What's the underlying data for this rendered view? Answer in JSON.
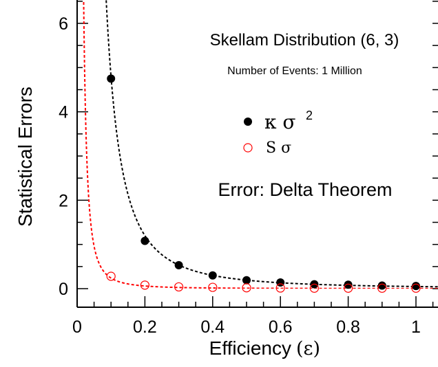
{
  "chart_data": {
    "type": "scatter",
    "xlabel": "Efficiency",
    "xlabel_symbol": "(ε)",
    "ylabel": "Statistical Errors",
    "xlim": [
      0,
      1.08
    ],
    "ylim": [
      -0.2,
      6.5
    ],
    "x_ticks": [
      {
        "value": 0,
        "label": "0"
      },
      {
        "value": 0.2,
        "label": "0.2"
      },
      {
        "value": 0.4,
        "label": "0.4"
      },
      {
        "value": 0.6,
        "label": "0.6"
      },
      {
        "value": 0.8,
        "label": "0.8"
      },
      {
        "value": 1.0,
        "label": "1"
      }
    ],
    "y_ticks": [
      {
        "value": 0,
        "label": "0"
      },
      {
        "value": 2,
        "label": "2"
      },
      {
        "value": 4,
        "label": "4"
      },
      {
        "value": 6,
        "label": "6"
      }
    ],
    "annotations": {
      "distribution": "Skellam Distribution (6, 3)",
      "events": "Number of Events: 1 Million",
      "method": "Error: Delta Theorem"
    },
    "legend_position": "top-right",
    "series": [
      {
        "legend_symbol": "κ σ",
        "legend_superscript": "2",
        "marker": "filled-circle",
        "color": "#000000",
        "x": [
          0.1,
          0.2,
          0.3,
          0.4,
          0.5,
          0.6,
          0.7,
          0.8,
          0.9,
          1.0
        ],
        "values": [
          4.75,
          1.08,
          0.53,
          0.3,
          0.19,
          0.14,
          0.1,
          0.09,
          0.07,
          0.06
        ],
        "fit_coefficient": 0.048
      },
      {
        "legend_symbol": "S σ",
        "marker": "open-circle",
        "color": "#ff0000",
        "x": [
          0.1,
          0.2,
          0.3,
          0.4,
          0.5,
          0.6,
          0.7,
          0.8,
          0.9,
          1.0
        ],
        "values": [
          0.28,
          0.08,
          0.04,
          0.03,
          0.02,
          0.015,
          0.01,
          0.01,
          0.01,
          0.01
        ],
        "fit_coefficient": 0.0024
      }
    ]
  }
}
